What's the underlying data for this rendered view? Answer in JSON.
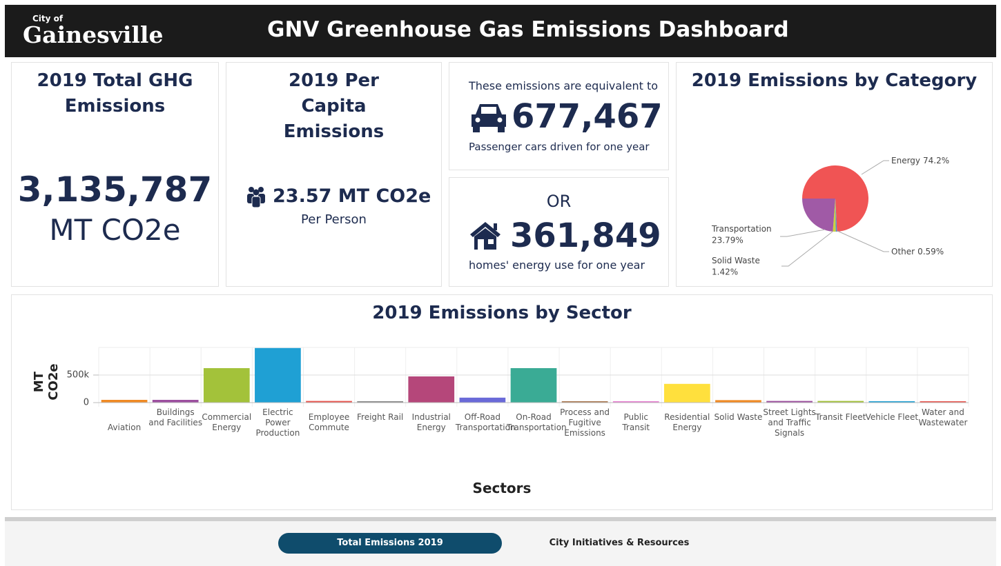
{
  "header": {
    "logo_small": "City of",
    "logo": "Gainesville",
    "title": "GNV Greenhouse Gas Emissions Dashboard"
  },
  "cards": {
    "total": {
      "title": "2019 Total GHG Emissions",
      "value": "3,135,787",
      "unit": "MT CO2e"
    },
    "per_capita": {
      "title": "2019 Per Capita Emissions",
      "value": "23.57 MT CO2e",
      "caption": "Per Person"
    },
    "cars": {
      "intro": "These emissions are equivalent to",
      "value": "677,467",
      "caption": "Passenger cars driven for one year"
    },
    "homes": {
      "intro": "OR",
      "value": "361,849",
      "caption": "homes' energy use for one year"
    }
  },
  "category_chart": {
    "type": "pie",
    "title": "2019 Emissions by Category",
    "categories": [
      "Energy",
      "Other",
      "Solid Waste",
      "Transportation"
    ],
    "values": [
      74.2,
      0.59,
      1.42,
      23.79
    ],
    "value_labels": [
      "74.2%",
      "0.59%",
      "1.42%",
      "23.79%"
    ],
    "colors": [
      "#f05454",
      "#4a8fd8",
      "#c9d33f",
      "#a05aa6"
    ]
  },
  "sector_chart": {
    "type": "bar",
    "title": "2019 Emissions by Sector",
    "y_label": "MT CO2e",
    "x_label": "Sectors",
    "categories": [
      "Aviation",
      "Buildings and Facilities",
      "Commercial Energy",
      "Electric Power Production",
      "Employee Commute",
      "Freight Rail",
      "Industrial Energy",
      "Off-Road Transportation",
      "On-Road Transportation",
      "Process and Fugitive Emissions",
      "Public Transit",
      "Residential Energy",
      "Solid Waste",
      "Street Lights and Traffic Signals",
      "Transit Fleet",
      "Vehicle Fleet",
      "Water and Wastewater"
    ],
    "values": [
      50000,
      50000,
      625000,
      990000,
      30000,
      25000,
      475000,
      90000,
      625000,
      25000,
      25000,
      340000,
      45000,
      30000,
      30000,
      25000,
      25000
    ],
    "colors": [
      "#f08a24",
      "#9c4f9f",
      "#a3c23a",
      "#1fa0d4",
      "#e8554e",
      "#858585",
      "#b5477a",
      "#6a6ad8",
      "#3aab95",
      "#a8754d",
      "#e67ed0",
      "#ffe03d",
      "#f08a24",
      "#9c4f9f",
      "#a3c23a",
      "#1fa0d4",
      "#e8554e"
    ],
    "ylim": [
      0,
      1000000
    ],
    "yticks": [
      0,
      {
        "value": 500000,
        "label": "500k"
      }
    ],
    "grid": true
  },
  "tabs": [
    "Total Emissions 2019",
    "City Initiatives & Resources"
  ]
}
